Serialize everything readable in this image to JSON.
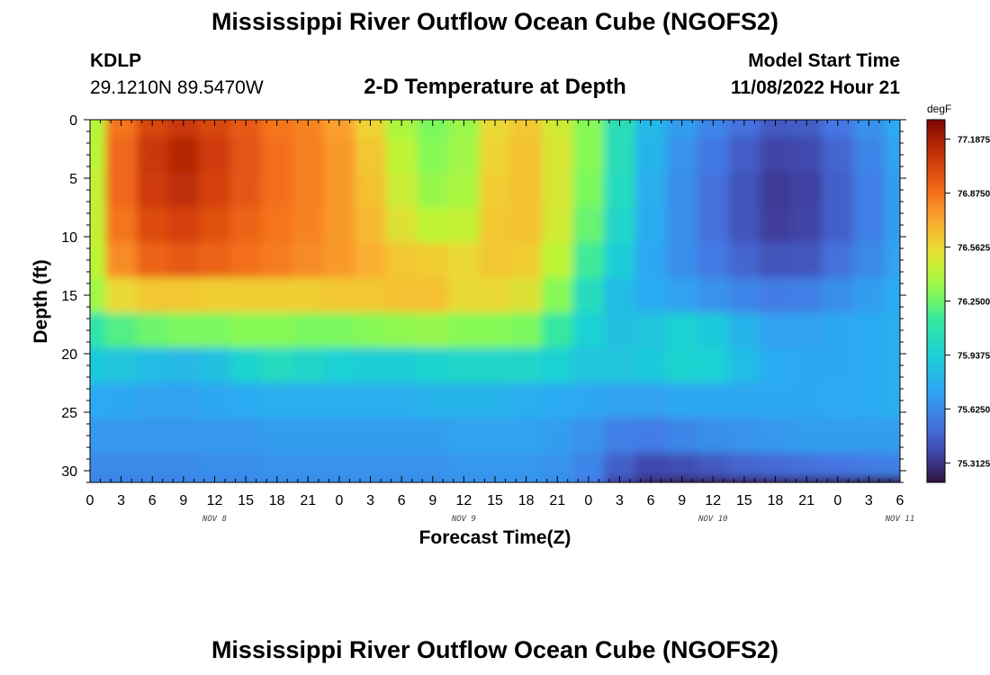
{
  "header": {
    "title": "Mississippi River Outflow Ocean Cube (NGOFS2)",
    "station_id": "KDLP",
    "station_coords": "29.1210N  89.5470W",
    "subtitle": "2-D Temperature at Depth",
    "model_start_label": "Model Start Time",
    "model_start_value": "11/08/2022 Hour 21"
  },
  "footer": {
    "title": "Mississippi River Outflow Ocean Cube (NGOFS2)"
  },
  "chart_data": {
    "type": "heatmap",
    "title": "2-D Temperature at Depth",
    "xlabel": "Forecast Time(Z)",
    "ylabel": "Depth (ft)",
    "x_tick_labels": [
      "0",
      "3",
      "6",
      "9",
      "12",
      "15",
      "18",
      "21",
      "0",
      "3",
      "6",
      "9",
      "12",
      "15",
      "18",
      "21",
      "0",
      "3",
      "6",
      "9",
      "12",
      "15",
      "18",
      "21",
      "0",
      "3",
      "6"
    ],
    "day_labels": [
      {
        "label": "NOV 8",
        "hour": 12
      },
      {
        "label": "NOV 9",
        "hour": 36
      },
      {
        "label": "NOV 10",
        "hour": 60
      },
      {
        "label": "NOV 11",
        "hour": 78
      }
    ],
    "xlim": [
      0,
      78
    ],
    "ylim": [
      0,
      31
    ],
    "y_ticks": [
      0,
      5,
      10,
      15,
      20,
      25,
      30
    ],
    "y_inverted": true,
    "colorbar": {
      "unit": "degF",
      "labels": [
        "77.1875",
        "76.8750",
        "76.5625",
        "76.2500",
        "75.9375",
        "75.6250",
        "75.3125"
      ],
      "range": [
        75.2,
        77.3
      ]
    },
    "x": [
      0,
      3,
      6,
      9,
      12,
      15,
      18,
      21,
      24,
      27,
      30,
      33,
      36,
      39,
      42,
      45,
      48,
      51,
      54,
      57,
      60,
      63,
      66,
      69,
      72,
      75,
      78
    ],
    "depth": [
      0,
      3,
      6,
      9,
      12,
      15,
      18,
      21,
      24,
      27,
      30,
      31
    ],
    "values": [
      [
        76.4,
        76.86,
        77.02,
        77.08,
        77.02,
        76.95,
        76.86,
        76.82,
        76.74,
        76.58,
        76.38,
        76.28,
        76.34,
        76.56,
        76.62,
        76.48,
        76.3,
        76.05,
        75.82,
        75.7,
        75.6,
        75.52,
        75.44,
        75.45,
        75.54,
        75.65,
        75.75
      ],
      [
        76.42,
        76.9,
        77.08,
        77.15,
        77.06,
        76.97,
        76.88,
        76.83,
        76.76,
        76.62,
        76.42,
        76.3,
        76.36,
        76.58,
        76.64,
        76.5,
        76.3,
        76.04,
        75.8,
        75.66,
        75.55,
        75.45,
        75.36,
        75.38,
        75.48,
        75.6,
        75.72
      ],
      [
        76.44,
        76.9,
        77.06,
        77.12,
        77.04,
        76.96,
        76.88,
        76.83,
        76.76,
        76.64,
        76.46,
        76.34,
        76.38,
        76.6,
        76.64,
        76.5,
        76.28,
        76.02,
        75.78,
        75.64,
        75.52,
        75.42,
        75.33,
        75.35,
        75.46,
        75.58,
        75.7
      ],
      [
        76.44,
        76.86,
        77.0,
        77.04,
        76.98,
        76.92,
        76.86,
        76.82,
        76.76,
        76.66,
        76.52,
        76.42,
        76.44,
        76.62,
        76.64,
        76.48,
        76.24,
        75.98,
        75.76,
        75.64,
        75.52,
        75.42,
        75.34,
        75.36,
        75.46,
        75.58,
        75.7
      ],
      [
        76.42,
        76.8,
        76.92,
        76.95,
        76.92,
        76.88,
        76.84,
        76.8,
        76.76,
        76.7,
        76.62,
        76.6,
        76.56,
        76.62,
        76.6,
        76.42,
        76.16,
        75.92,
        75.74,
        75.64,
        75.56,
        75.48,
        75.42,
        75.43,
        75.52,
        75.62,
        75.72
      ],
      [
        76.36,
        76.56,
        76.62,
        76.62,
        76.6,
        76.6,
        76.6,
        76.6,
        76.62,
        76.62,
        76.64,
        76.64,
        76.56,
        76.56,
        76.52,
        76.3,
        76.02,
        75.84,
        75.76,
        75.72,
        75.66,
        75.6,
        75.56,
        75.58,
        75.64,
        75.7,
        75.76
      ],
      [
        76.1,
        76.2,
        76.25,
        76.28,
        76.28,
        76.3,
        76.3,
        76.28,
        76.28,
        76.3,
        76.32,
        76.34,
        76.3,
        76.3,
        76.28,
        76.14,
        75.94,
        75.86,
        75.88,
        75.94,
        75.9,
        75.8,
        75.72,
        75.72,
        75.74,
        75.76,
        75.78
      ],
      [
        75.9,
        75.88,
        75.84,
        75.82,
        75.86,
        75.96,
        76.02,
        75.98,
        75.94,
        75.92,
        75.92,
        75.96,
        75.98,
        75.98,
        75.98,
        75.94,
        75.88,
        75.88,
        75.9,
        75.96,
        75.94,
        75.84,
        75.76,
        75.74,
        75.74,
        75.76,
        75.78
      ],
      [
        75.76,
        75.74,
        75.72,
        75.72,
        75.74,
        75.76,
        75.78,
        75.78,
        75.78,
        75.78,
        75.78,
        75.8,
        75.8,
        75.8,
        75.78,
        75.76,
        75.74,
        75.72,
        75.72,
        75.74,
        75.74,
        75.74,
        75.74,
        75.74,
        75.75,
        75.76,
        75.78
      ],
      [
        75.68,
        75.68,
        75.68,
        75.68,
        75.68,
        75.68,
        75.7,
        75.7,
        75.7,
        75.7,
        75.7,
        75.7,
        75.72,
        75.72,
        75.72,
        75.7,
        75.66,
        75.58,
        75.56,
        75.6,
        75.64,
        75.66,
        75.68,
        75.7,
        75.7,
        75.7,
        75.7
      ],
      [
        75.62,
        75.62,
        75.62,
        75.62,
        75.64,
        75.64,
        75.66,
        75.66,
        75.66,
        75.66,
        75.66,
        75.66,
        75.68,
        75.68,
        75.68,
        75.66,
        75.6,
        75.46,
        75.38,
        75.4,
        75.44,
        75.48,
        75.5,
        75.52,
        75.54,
        75.56,
        75.58
      ],
      [
        75.6,
        75.6,
        75.6,
        75.6,
        75.62,
        75.62,
        75.64,
        75.64,
        75.64,
        75.64,
        75.64,
        75.64,
        75.66,
        75.66,
        75.66,
        75.64,
        75.56,
        75.36,
        75.28,
        75.26,
        75.26,
        75.27,
        75.28,
        75.28,
        75.26,
        75.24,
        75.22
      ]
    ]
  },
  "colors": {
    "background": "#ffffff",
    "axis": "#000000"
  }
}
